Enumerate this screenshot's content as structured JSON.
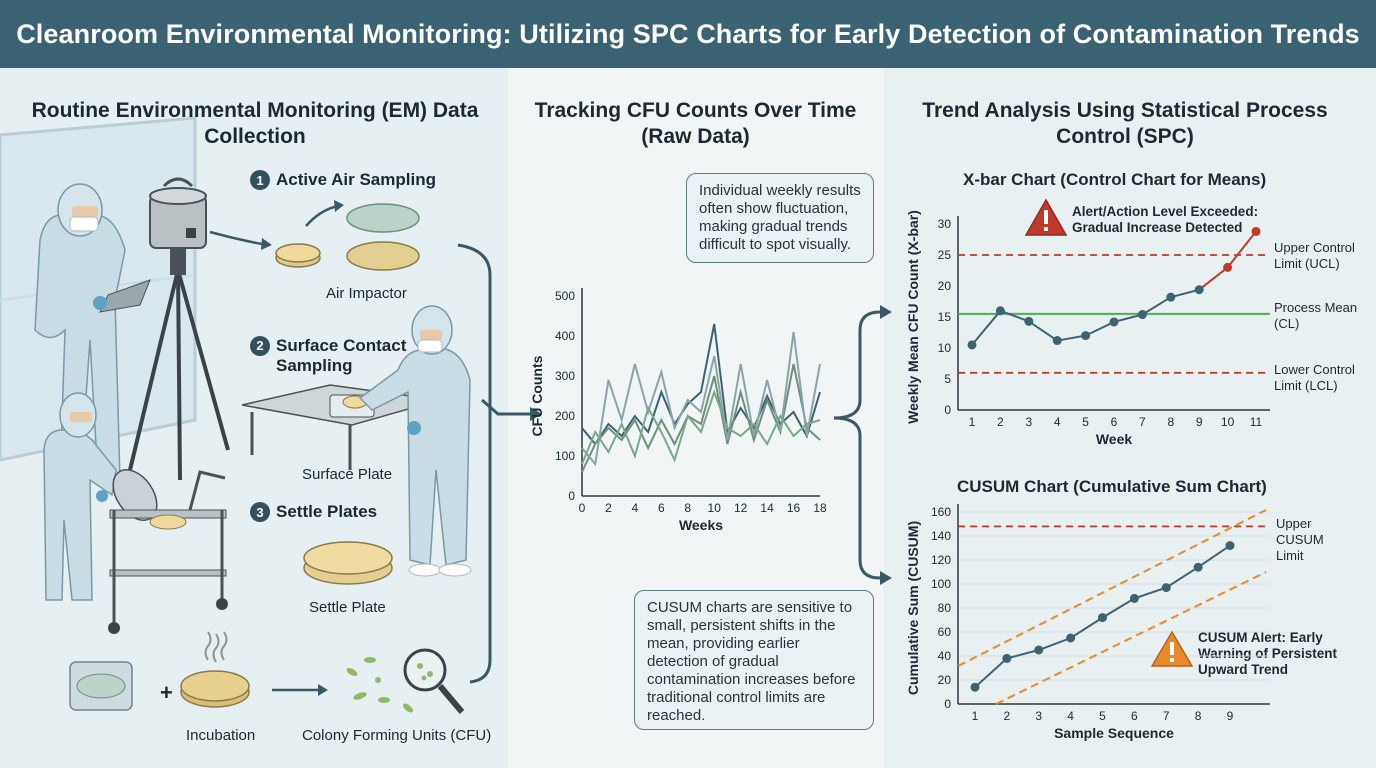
{
  "title": "Cleanroom Environmental Monitoring: Utilizing SPC Charts for Early Detection of Contamination Trends",
  "left": {
    "title": "Routine Environmental Monitoring (EM) Data Collection",
    "steps": [
      {
        "num": "1",
        "label": "Active Air Sampling"
      },
      {
        "num": "2",
        "label": "Surface Contact Sampling"
      },
      {
        "num": "3",
        "label": "Settle Plates"
      }
    ],
    "captions": {
      "air_impactor": "Air Impactor",
      "surface_plate": "Surface Plate",
      "settle_plate": "Settle Plate",
      "incubation": "Incubation",
      "plus": "+",
      "cfu": "Colony Forming Units (CFU)"
    }
  },
  "middle": {
    "title": "Tracking CFU Counts Over Time (Raw Data)",
    "callout_top": "Individual weekly results often show fluctuation, making gradual trends difficult to spot visually.",
    "callout_bottom": "CUSUM charts are sensitive to small, persistent shifts in the mean, providing earlier detection of gradual contamination increases before traditional control limits are reached."
  },
  "right": {
    "title": "Trend Analysis Using Statistical Process Control (SPC)",
    "xbar_title": "X-bar Chart (Control Chart for Means)",
    "xbar_alert": "Alert/Action Level Exceeded: Gradual Increase Detected",
    "ucl_label": "Upper Control Limit (UCL)",
    "cl_label": "Process Mean (CL)",
    "lcl_label": "Lower Control Limit (LCL)",
    "cusum_title": "CUSUM Chart (Cumulative Sum Chart)",
    "cusum_limit_label": "Upper CUSUM Limit",
    "cusum_alert": "CUSUM Alert: Early Warning of Persistent Upward Trend"
  },
  "colors": {
    "header": "#3b6272",
    "accent_dark": "#34505e",
    "alert_red": "#c0392b",
    "warning_orange": "#e8892a",
    "cl_green": "#4caf50",
    "series_line": "#3d6272"
  },
  "chart_data": [
    {
      "type": "line",
      "title": "",
      "xlabel": "Weeks",
      "ylabel": "CFU Counts",
      "xlim": [
        0,
        18
      ],
      "ylim": [
        0,
        500
      ],
      "x_ticks": [
        "0",
        "2",
        "4",
        "6",
        "8",
        "10",
        "12",
        "14",
        "16",
        "18"
      ],
      "y_ticks": [
        "0",
        "100",
        "200",
        "300",
        "400",
        "500"
      ],
      "x": [
        0,
        1,
        2,
        3,
        4,
        5,
        6,
        7,
        8,
        9,
        10,
        11,
        12,
        13,
        14,
        15,
        16,
        17,
        18
      ],
      "series": [
        {
          "color": "#3d6272",
          "values": [
            170,
            130,
            180,
            150,
            200,
            160,
            260,
            180,
            230,
            260,
            430,
            160,
            220,
            170,
            250,
            180,
            210,
            150,
            260
          ]
        },
        {
          "color": "#6f8f7a",
          "values": [
            60,
            130,
            170,
            140,
            190,
            120,
            190,
            130,
            200,
            180,
            300,
            130,
            260,
            140,
            240,
            160,
            330,
            170,
            140
          ]
        },
        {
          "color": "#8aa4ab",
          "values": [
            120,
            80,
            290,
            190,
            330,
            210,
            310,
            170,
            240,
            210,
            350,
            140,
            330,
            150,
            290,
            160,
            410,
            150,
            330
          ]
        },
        {
          "color": "#7aa886",
          "values": [
            80,
            160,
            110,
            180,
            100,
            220,
            160,
            90,
            200,
            160,
            260,
            170,
            150,
            180,
            130,
            200,
            150,
            180,
            190
          ]
        }
      ]
    },
    {
      "type": "line",
      "title": "X-bar Chart (Control Chart for Means)",
      "xlabel": "Week",
      "ylabel": "Weekly Mean CFU Count (X-bar)",
      "xlim": [
        1,
        11
      ],
      "ylim": [
        0,
        30
      ],
      "x_ticks": [
        "1",
        "2",
        "3",
        "4",
        "5",
        "6",
        "7",
        "8",
        "9",
        "10",
        "11"
      ],
      "y_ticks": [
        "0",
        "5",
        "10",
        "15",
        "20",
        "25",
        "30"
      ],
      "x": [
        1,
        2,
        3,
        4,
        5,
        6,
        7,
        8,
        9,
        10,
        11
      ],
      "values": [
        10.5,
        16,
        14.3,
        11.2,
        12,
        14.2,
        15.4,
        18.2,
        19.4,
        23,
        28.8
      ],
      "ucl": 25,
      "cl": 15.5,
      "lcl": 6
    },
    {
      "type": "line",
      "title": "CUSUM Chart (Cumulative Sum Chart)",
      "xlabel": "Sample Sequence",
      "ylabel": "Cumulative Sum (CUSUM)",
      "xlim": [
        1,
        9
      ],
      "ylim": [
        0,
        160
      ],
      "x_ticks": [
        "1",
        "2",
        "3",
        "4",
        "5",
        "6",
        "7",
        "8",
        "9"
      ],
      "y_ticks": [
        "0",
        "20",
        "40",
        "60",
        "80",
        "100",
        "120",
        "140",
        "160"
      ],
      "x": [
        1,
        2,
        3,
        4,
        5,
        6,
        7,
        8,
        9
      ],
      "values": [
        14,
        38,
        45,
        55,
        72,
        88,
        97,
        114,
        132
      ],
      "upper_limit": 148
    }
  ]
}
